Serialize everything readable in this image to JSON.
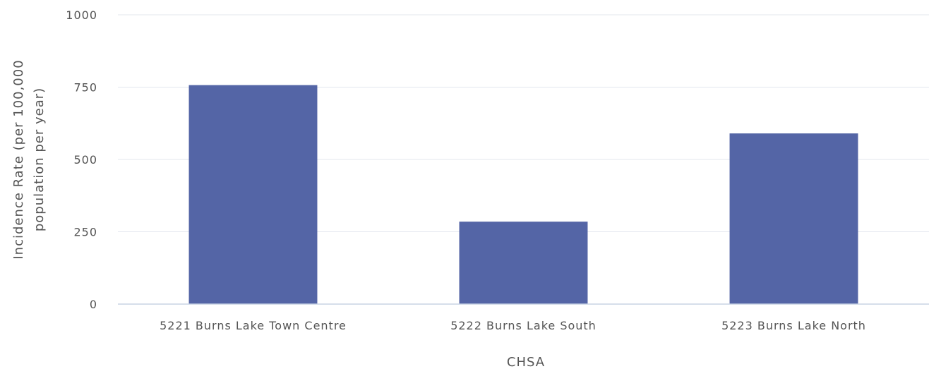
{
  "chart_data": {
    "type": "bar",
    "title": "",
    "xlabel": "CHSA",
    "ylabel_lines": [
      "Incidence Rate (per 100,000",
      "population per year)"
    ],
    "categories": [
      "5221 Burns Lake Town Centre",
      "5222 Burns Lake South",
      "5223 Burns Lake North"
    ],
    "values": [
      757,
      285,
      590
    ],
    "ylim": [
      0,
      1000
    ],
    "yticks": [
      0,
      250,
      500,
      750,
      1000
    ],
    "ytick_labels": [
      "0",
      "250",
      "500",
      "750",
      "1000"
    ],
    "grid": true,
    "legend": "none",
    "bar_color": "#5465a6"
  }
}
